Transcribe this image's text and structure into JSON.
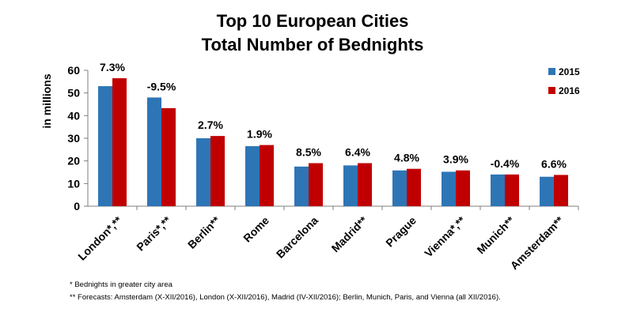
{
  "chart_data": {
    "type": "bar",
    "title_lines": [
      "Top 10 European Cities",
      "Total Number of Bednights"
    ],
    "ylabel": "in millions",
    "xlabel": "",
    "ylim": [
      0,
      60
    ],
    "yticks": [
      0,
      10,
      20,
      30,
      40,
      50,
      60
    ],
    "categories": [
      "London*,**",
      "Paris*,**",
      "Berlin**",
      "Rome",
      "Barcelona",
      "Madrid**",
      "Prague",
      "Vienna*,**",
      "Munich**",
      "Amsterdam**"
    ],
    "series": [
      {
        "name": "2015",
        "color": "#2E75B6",
        "values": [
          53,
          48,
          30,
          26.5,
          17.5,
          18,
          15.8,
          15.2,
          14,
          13
        ]
      },
      {
        "name": "2016",
        "color": "#C00000",
        "values": [
          56.5,
          43.3,
          31,
          27,
          19,
          19,
          16.5,
          15.8,
          14,
          13.8
        ]
      }
    ],
    "annotations": [
      "7.3%",
      "-9.5%",
      "2.7%",
      "1.9%",
      "8.5%",
      "6.4%",
      "4.8%",
      "3.9%",
      "-0.4%",
      "6.6%"
    ],
    "legend_position": "top-right",
    "grid": false
  },
  "footnotes": [
    "* Bednights in greater city area",
    "** Forecasts: Amsterdam (X-XII/2016), London (X-XII/2016),  Madrid (IV-XII/2016); Berlin, Munich,  Paris, and Vienna  (all XII/2016)."
  ]
}
